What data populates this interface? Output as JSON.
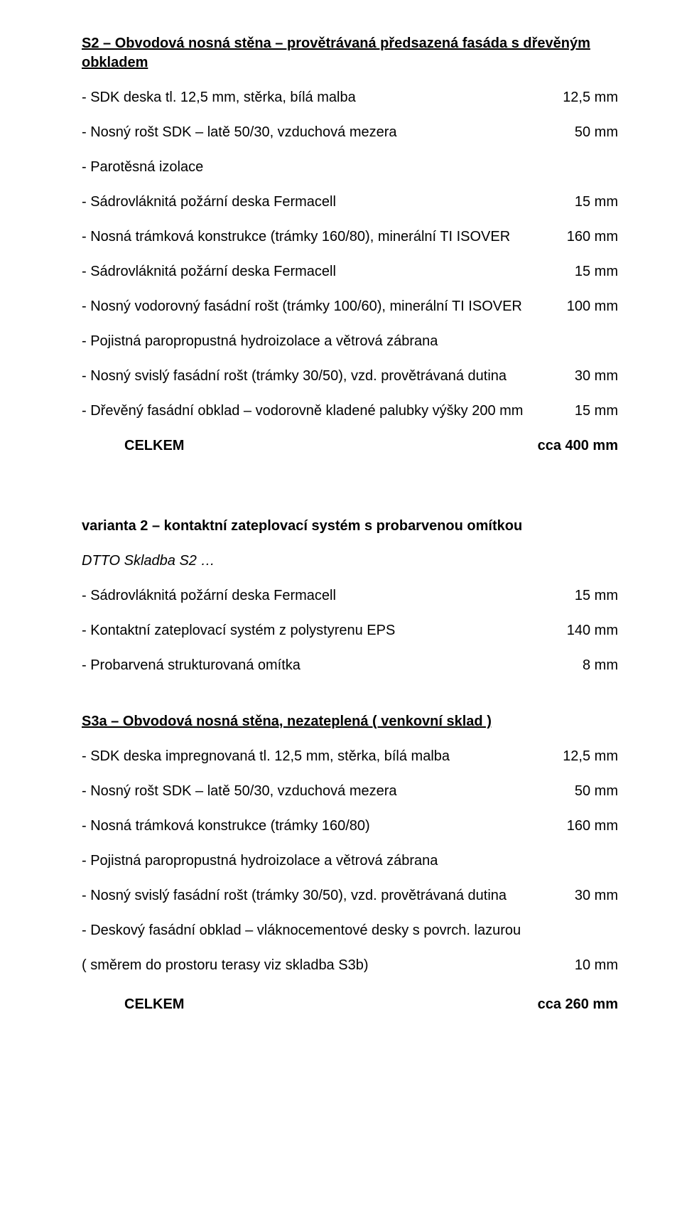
{
  "s2": {
    "title": "S2 – Obvodová nosná stěna – provětrávaná předsazená fasáda s dřevěným obkladem",
    "rows": [
      {
        "label": "- SDK deska tl. 12,5 mm, stěrka, bílá malba",
        "value": "12,5 mm"
      },
      {
        "label": "- Nosný rošt SDK – latě 50/30, vzduchová mezera",
        "value": "50 mm"
      },
      {
        "label": "- Parotěsná izolace",
        "value": ""
      },
      {
        "label": "- Sádrovláknitá požární deska Fermacell",
        "value": "15 mm"
      },
      {
        "label": "- Nosná trámková konstrukce (trámky 160/80), minerální TI ISOVER",
        "value": "160 mm"
      },
      {
        "label": "- Sádrovláknitá požární deska Fermacell",
        "value": "15 mm"
      },
      {
        "label": "- Nosný vodorovný fasádní rošt (trámky 100/60), minerální TI ISOVER",
        "value": "100 mm"
      },
      {
        "label": "- Pojistná paropropustná hydroizolace a větrová zábrana",
        "value": ""
      },
      {
        "label": "- Nosný svislý fasádní rošt (trámky 30/50), vzd. provětrávaná dutina",
        "value": "30 mm"
      },
      {
        "label": "- Dřevěný fasádní obklad – vodorovně kladené palubky výšky 200 mm",
        "value": "15 mm"
      }
    ],
    "total_label": "CELKEM",
    "total_value": "cca 400 mm"
  },
  "variant2": {
    "title": "varianta 2 – kontaktní zateplovací systém s probarvenou omítkou",
    "dtto": "DTTO Skladba S2 …",
    "rows": [
      {
        "label": "- Sádrovláknitá požární deska Fermacell",
        "value": "15 mm"
      },
      {
        "label": "- Kontaktní zateplovací systém z polystyrenu EPS",
        "value": "140 mm"
      },
      {
        "label": "- Probarvená strukturovaná omítka",
        "value": "8 mm"
      }
    ]
  },
  "s3a": {
    "title": "S3a – Obvodová nosná stěna, nezateplená ( venkovní sklad )",
    "rows": [
      {
        "label": "- SDK deska impregnovaná tl. 12,5 mm, stěrka, bílá malba",
        "value": "12,5 mm"
      },
      {
        "label": "- Nosný rošt SDK – latě 50/30, vzduchová mezera",
        "value": "50 mm"
      },
      {
        "label": "- Nosná trámková konstrukce (trámky 160/80)",
        "value": "160 mm"
      },
      {
        "label": "- Pojistná paropropustná hydroizolace a větrová zábrana",
        "value": ""
      },
      {
        "label": "- Nosný svislý fasádní rošt (trámky 30/50), vzd. provětrávaná dutina",
        "value": "30 mm"
      },
      {
        "label": "- Deskový fasádní obklad – vláknocementové desky s povrch. lazurou",
        "value": ""
      },
      {
        "label": "( směrem do prostoru terasy viz skladba S3b)",
        "value": "10 mm"
      }
    ],
    "total_label": "CELKEM",
    "total_value": "cca 260 mm"
  }
}
